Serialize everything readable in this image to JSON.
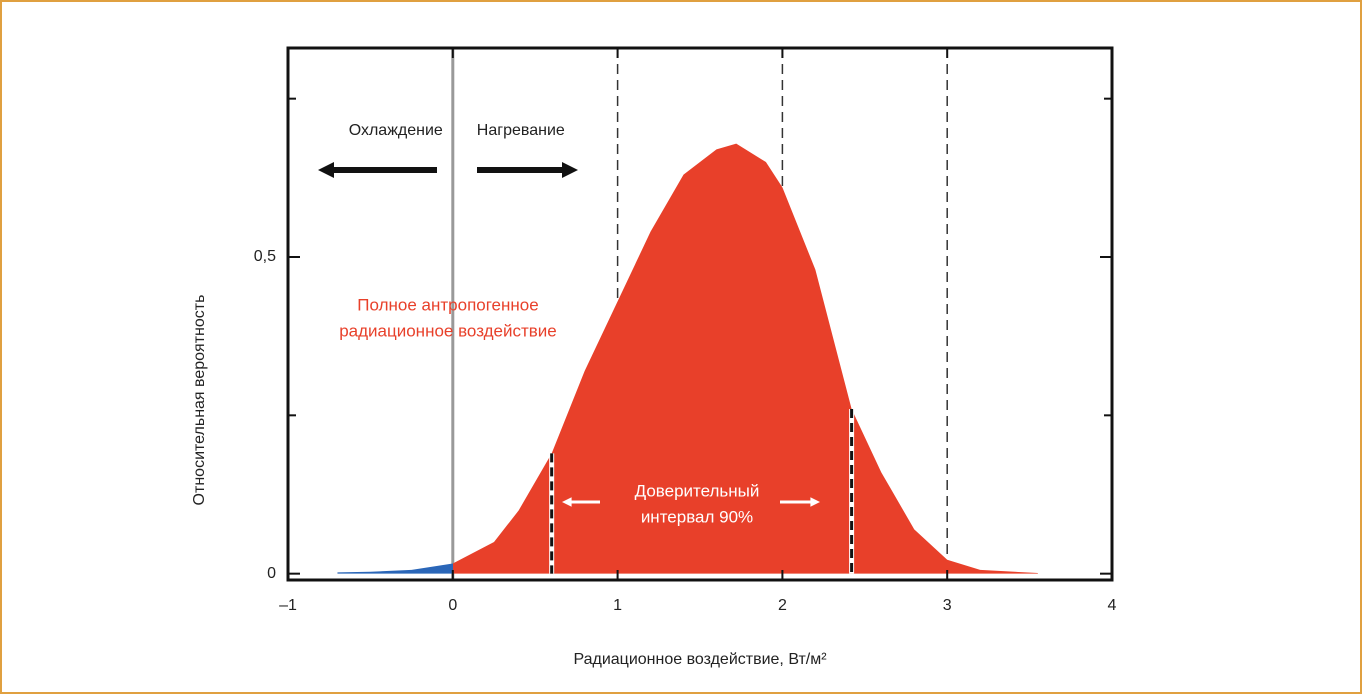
{
  "chart_data": {
    "type": "area",
    "x_label": "Радиационное воздействие, Вт/м²",
    "y_label": "Относительная вероятность",
    "xlim": [
      -1,
      4
    ],
    "ylim": [
      -0.01,
      0.83
    ],
    "xticks": [
      {
        "value": -1,
        "label": "–1"
      },
      0,
      1,
      2,
      3,
      4
    ],
    "yticks": [
      0,
      {
        "value": 0.5,
        "label": "0,5"
      }
    ],
    "yminor_ticks": [
      0.25,
      0.75
    ],
    "reference_lines": [
      1,
      2,
      3
    ],
    "zero_line": 0,
    "confidence_interval": [
      0.6,
      2.42
    ],
    "series": [
      {
        "color": "#e8402a",
        "negative_color": "#2a66b8",
        "x": [
          -0.7,
          -0.5,
          -0.25,
          0,
          0.25,
          0.4,
          0.6,
          0.8,
          1.0,
          1.2,
          1.4,
          1.6,
          1.72,
          1.9,
          2.0,
          2.2,
          2.42,
          2.6,
          2.8,
          3.0,
          3.2,
          3.55
        ],
        "values": [
          0.002,
          0.003,
          0.006,
          0.016,
          0.05,
          0.1,
          0.19,
          0.32,
          0.43,
          0.54,
          0.63,
          0.67,
          0.679,
          0.65,
          0.61,
          0.48,
          0.26,
          0.16,
          0.07,
          0.022,
          0.006,
          0.001
        ]
      }
    ],
    "annotations": {
      "cooling": "Охлаждение",
      "warming": "Нагревание",
      "total": [
        "Полное антропогенное",
        "радиационное воздействие"
      ],
      "interval": [
        "Доверительный",
        "интервал 90%"
      ]
    }
  }
}
